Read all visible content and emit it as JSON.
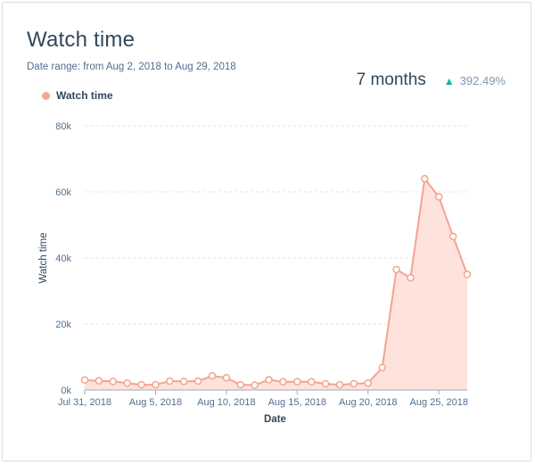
{
  "header": {
    "title": "Watch time",
    "date_range": "Date range: from Aug 2, 2018 to Aug 29, 2018"
  },
  "summary": {
    "period": "7 months",
    "change_icon": "triangle-up-icon",
    "change": "392.49%"
  },
  "colors": {
    "line": "#f5a38f",
    "area": "#fde3dc",
    "grid": "#dfe3eb",
    "text": "#33475b",
    "tick": "#516f90",
    "up": "#00bda5"
  },
  "chart_data": {
    "type": "area",
    "series": [
      {
        "name": "Watch time",
        "x": [
          "2018-07-31",
          "2018-08-01",
          "2018-08-02",
          "2018-08-03",
          "2018-08-04",
          "2018-08-05",
          "2018-08-06",
          "2018-08-07",
          "2018-08-08",
          "2018-08-09",
          "2018-08-10",
          "2018-08-11",
          "2018-08-12",
          "2018-08-13",
          "2018-08-14",
          "2018-08-15",
          "2018-08-16",
          "2018-08-17",
          "2018-08-18",
          "2018-08-19",
          "2018-08-20",
          "2018-08-21",
          "2018-08-22",
          "2018-08-23",
          "2018-08-24",
          "2018-08-25",
          "2018-08-26",
          "2018-08-27"
        ],
        "values": [
          3000,
          2800,
          2600,
          2100,
          1600,
          1600,
          2700,
          2600,
          2700,
          4300,
          3700,
          1600,
          1500,
          3100,
          2500,
          2500,
          2500,
          1900,
          1600,
          1900,
          2100,
          6800,
          36500,
          34000,
          64000,
          58500,
          46500,
          35000
        ]
      }
    ],
    "xlabel": "Date",
    "ylabel": "Watch time",
    "ylim": [
      0,
      80000
    ],
    "xlim": [
      "2018-07-31",
      "2018-08-27"
    ],
    "y_ticks": [
      {
        "value": 0,
        "label": "0k"
      },
      {
        "value": 20000,
        "label": "20k"
      },
      {
        "value": 40000,
        "label": "40k"
      },
      {
        "value": 60000,
        "label": "60k"
      },
      {
        "value": 80000,
        "label": "80k"
      }
    ],
    "x_ticks": [
      {
        "date": "2018-07-31",
        "label": "Jul 31, 2018"
      },
      {
        "date": "2018-08-05",
        "label": "Aug 5, 2018"
      },
      {
        "date": "2018-08-10",
        "label": "Aug 10, 2018"
      },
      {
        "date": "2018-08-15",
        "label": "Aug 15, 2018"
      },
      {
        "date": "2018-08-20",
        "label": "Aug 20, 2018"
      },
      {
        "date": "2018-08-25",
        "label": "Aug 25, 2018"
      }
    ],
    "grid": true,
    "legend": "top-left"
  }
}
